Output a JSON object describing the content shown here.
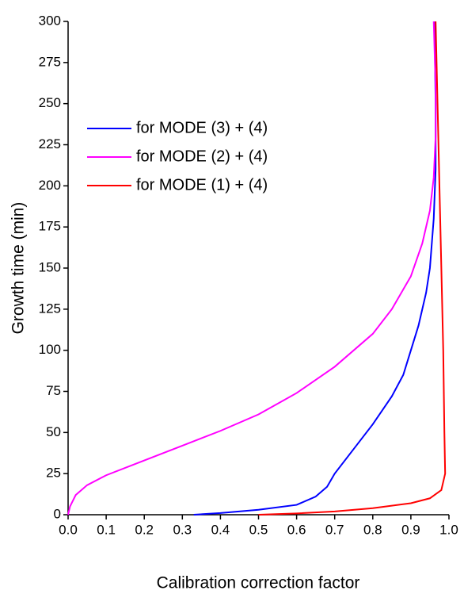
{
  "chart_data": {
    "type": "line",
    "xlabel": "Calibration correction factor",
    "ylabel": "Growth time (min)",
    "xlim": [
      0,
      1
    ],
    "ylim": [
      0,
      300
    ],
    "xticks": [
      {
        "value": 0,
        "label": "0.0"
      },
      0.1,
      0.2,
      0.3,
      0.4,
      0.5,
      0.6,
      0.7,
      0.8,
      0.9,
      {
        "value": 1,
        "label": "1.0"
      }
    ],
    "yticks": [
      0,
      25,
      50,
      75,
      100,
      125,
      150,
      175,
      200,
      225,
      250,
      275,
      300
    ],
    "legend": "upper left",
    "series": [
      {
        "name": "for MODE (3) + (4)",
        "color": "#0000ff",
        "x": [
          0.33,
          0.4,
          0.5,
          0.6,
          0.65,
          0.68,
          0.7,
          0.75,
          0.8,
          0.85,
          0.88,
          0.9,
          0.92,
          0.94,
          0.95,
          0.96,
          0.965,
          0.965,
          0.962
        ],
        "values": [
          0,
          1,
          3,
          6,
          11,
          17,
          25,
          40,
          55,
          72,
          85,
          100,
          115,
          135,
          150,
          180,
          210,
          250,
          300
        ]
      },
      {
        "name": "for MODE (2) + (4)",
        "color": "#ff00ff",
        "x": [
          0,
          0.005,
          0.02,
          0.05,
          0.1,
          0.2,
          0.3,
          0.4,
          0.5,
          0.6,
          0.7,
          0.8,
          0.85,
          0.9,
          0.93,
          0.95,
          0.96,
          0.965,
          0.965,
          0.96
        ],
        "values": [
          0,
          5,
          12,
          18,
          24,
          33,
          42,
          51,
          61,
          74,
          90,
          110,
          125,
          145,
          165,
          185,
          205,
          230,
          260,
          300
        ]
      },
      {
        "name": "for MODE (1) + (4)",
        "color": "#ff0000",
        "x": [
          0.5,
          0.6,
          0.7,
          0.8,
          0.9,
          0.95,
          0.98,
          0.99,
          0.988,
          0.985,
          0.98,
          0.975,
          0.97,
          0.965
        ],
        "values": [
          0,
          0.8,
          2,
          4,
          7,
          10,
          15,
          25,
          50,
          100,
          150,
          200,
          250,
          300
        ]
      }
    ]
  }
}
